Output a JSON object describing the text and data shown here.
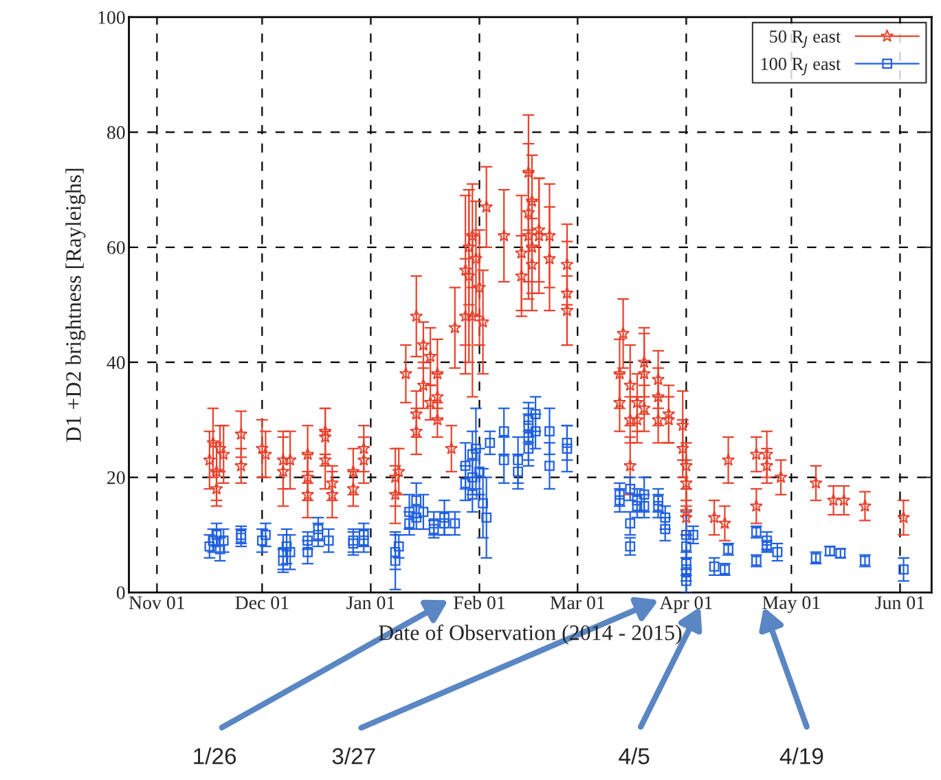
{
  "chart_data": {
    "type": "scatter",
    "xlabel": "Date of Observation (2014 - 2015)",
    "ylabel": "D1 +D2 brightness [Rayleighs]",
    "xlim": [
      "2014-10-24",
      "2015-06-10"
    ],
    "xticks": [
      {
        "value": "2014-11-01",
        "label": "Nov 01"
      },
      {
        "value": "2014-12-01",
        "label": "Dec 01"
      },
      {
        "value": "2015-01-01",
        "label": "Jan 01"
      },
      {
        "value": "2015-02-01",
        "label": "Feb 01"
      },
      {
        "value": "2015-03-01",
        "label": "Mar 01"
      },
      {
        "value": "2015-04-01",
        "label": "Apr 01"
      },
      {
        "value": "2015-05-01",
        "label": "May 01"
      },
      {
        "value": "2015-06-01",
        "label": "Jun 01"
      }
    ],
    "ylim": [
      0,
      100
    ],
    "yticks": [
      0,
      20,
      40,
      60,
      80,
      100
    ],
    "grid": true,
    "legend": "top right",
    "series": [
      {
        "name": "50 R$_{J}$ east",
        "color": "#e8412c",
        "marker": "star",
        "x": [
          "2014-11-16",
          "2014-11-17",
          "2014-11-18",
          "2014-11-18",
          "2014-11-19",
          "2014-11-20",
          "2014-11-25",
          "2014-11-25",
          "2014-12-01",
          "2014-12-02",
          "2014-12-07",
          "2014-12-07",
          "2014-12-09",
          "2014-12-14",
          "2014-12-14",
          "2014-12-14",
          "2014-12-19",
          "2014-12-19",
          "2014-12-19",
          "2014-12-21",
          "2014-12-21",
          "2014-12-27",
          "2014-12-27",
          "2014-12-30",
          "2014-12-30",
          "2015-01-08",
          "2015-01-08",
          "2015-01-09",
          "2015-01-11",
          "2015-01-14",
          "2015-01-14",
          "2015-01-14",
          "2015-01-16",
          "2015-01-16",
          "2015-01-18",
          "2015-01-18",
          "2015-01-20",
          "2015-01-20",
          "2015-01-20",
          "2015-01-24",
          "2015-01-25",
          "2015-01-28",
          "2015-01-28",
          "2015-01-29",
          "2015-01-29",
          "2015-01-30",
          "2015-01-30",
          "2015-01-31",
          "2015-02-01",
          "2015-02-02",
          "2015-02-03",
          "2015-02-08",
          "2015-02-13",
          "2015-02-13",
          "2015-02-15",
          "2015-02-15",
          "2015-02-15",
          "2015-02-16",
          "2015-02-16",
          "2015-02-16",
          "2015-02-18",
          "2015-02-18",
          "2015-02-21",
          "2015-02-21",
          "2015-02-26",
          "2015-02-26",
          "2015-02-26",
          "2015-03-13",
          "2015-03-13",
          "2015-03-14",
          "2015-03-16",
          "2015-03-16",
          "2015-03-16",
          "2015-03-18",
          "2015-03-18",
          "2015-03-20",
          "2015-03-20",
          "2015-03-20",
          "2015-03-24",
          "2015-03-24",
          "2015-03-24",
          "2015-03-27",
          "2015-03-27",
          "2015-03-31",
          "2015-03-31",
          "2015-04-01",
          "2015-04-01",
          "2015-04-01",
          "2015-04-01",
          "2015-04-09",
          "2015-04-12",
          "2015-04-13",
          "2015-04-21",
          "2015-04-21",
          "2015-04-24",
          "2015-04-24",
          "2015-04-28",
          "2015-05-08",
          "2015-05-13",
          "2015-05-16",
          "2015-05-22",
          "2015-06-02"
        ],
        "values": [
          23,
          26,
          21,
          18,
          25,
          24,
          22,
          27.5,
          25,
          24,
          23,
          21,
          23,
          20,
          17,
          24,
          27,
          23,
          28,
          19,
          17,
          21,
          18,
          23,
          25,
          17,
          20,
          21,
          38,
          48,
          31,
          28,
          43,
          36,
          41,
          33,
          38,
          34,
          30,
          25,
          46,
          56,
          48,
          55,
          60,
          62,
          48,
          58,
          53,
          47,
          67,
          62,
          59,
          55,
          73,
          66,
          62,
          68,
          60,
          57,
          63,
          62,
          58,
          62,
          57,
          52,
          49,
          38,
          33,
          45,
          22,
          36,
          30,
          33,
          30,
          40,
          38,
          32,
          37,
          30,
          34,
          31,
          30,
          29,
          25,
          22,
          19,
          14,
          13,
          13,
          12,
          23,
          24,
          15,
          24,
          22,
          20,
          19,
          16,
          16,
          15,
          13
        ],
        "errors": [
          5,
          6,
          5,
          3,
          4,
          5,
          3,
          4,
          5,
          4,
          5,
          6,
          5,
          4,
          4,
          5,
          5,
          5,
          4,
          3,
          4,
          4,
          3,
          4,
          4,
          5,
          5,
          4,
          5,
          7,
          4,
          4,
          4,
          4,
          5,
          3,
          6,
          4,
          3,
          4,
          7,
          13,
          10,
          15,
          10,
          9,
          14,
          10,
          10,
          9,
          7,
          8,
          10,
          7,
          10,
          12,
          11,
          8,
          8,
          8,
          9,
          10,
          9,
          9,
          7,
          9,
          6,
          6,
          5,
          6,
          5,
          7,
          4,
          5,
          4,
          6,
          7,
          4,
          5,
          4,
          5,
          5,
          4,
          6,
          5,
          4,
          4,
          4,
          3,
          3,
          3,
          4,
          3,
          3,
          4,
          3,
          3,
          3,
          2.5,
          2.5,
          2.5,
          3
        ]
      },
      {
        "name": "100 R$_{J}$ east",
        "color": "#1f5fe0",
        "marker": "square",
        "x": [
          "2014-11-16",
          "2014-11-17",
          "2014-11-18",
          "2014-11-19",
          "2014-11-20",
          "2014-11-25",
          "2014-11-25",
          "2014-12-01",
          "2014-12-02",
          "2014-12-07",
          "2014-12-07",
          "2014-12-08",
          "2014-12-09",
          "2014-12-14",
          "2014-12-14",
          "2014-12-17",
          "2014-12-17",
          "2014-12-20",
          "2014-12-27",
          "2014-12-27",
          "2014-12-30",
          "2014-12-30",
          "2015-01-08",
          "2015-01-08",
          "2015-01-09",
          "2015-01-12",
          "2015-01-12",
          "2015-01-14",
          "2015-01-14",
          "2015-01-16",
          "2015-01-19",
          "2015-01-19",
          "2015-01-22",
          "2015-01-22",
          "2015-01-25",
          "2015-01-28",
          "2015-01-28",
          "2015-01-30",
          "2015-01-30",
          "2015-01-30",
          "2015-01-31",
          "2015-02-01",
          "2015-02-02",
          "2015-02-03",
          "2015-02-04",
          "2015-02-08",
          "2015-02-08",
          "2015-02-12",
          "2015-02-12",
          "2015-02-15",
          "2015-02-15",
          "2015-02-15",
          "2015-02-15",
          "2015-02-17",
          "2015-02-17",
          "2015-02-21",
          "2015-02-21",
          "2015-02-26",
          "2015-02-26",
          "2015-03-13",
          "2015-03-13",
          "2015-03-16",
          "2015-03-16",
          "2015-03-16",
          "2015-03-18",
          "2015-03-18",
          "2015-03-20",
          "2015-03-20",
          "2015-03-24",
          "2015-03-24",
          "2015-03-26",
          "2015-03-26",
          "2015-04-01",
          "2015-04-01",
          "2015-04-01",
          "2015-04-01",
          "2015-04-01",
          "2015-04-03",
          "2015-04-09",
          "2015-04-12",
          "2015-04-13",
          "2015-04-21",
          "2015-04-21",
          "2015-04-24",
          "2015-04-24",
          "2015-04-27",
          "2015-05-08",
          "2015-05-12",
          "2015-05-15",
          "2015-05-22",
          "2015-06-02"
        ],
        "values": [
          8,
          9,
          10,
          7.5,
          9,
          10,
          9.5,
          9,
          10,
          7,
          5.5,
          8,
          7,
          7,
          9,
          11,
          10,
          9,
          9,
          8.5,
          10,
          9,
          5.5,
          7,
          8,
          12,
          14,
          16,
          13,
          14,
          12,
          11,
          13,
          12,
          12,
          22,
          19,
          24,
          20,
          17,
          25,
          21,
          15.5,
          13,
          26,
          28,
          23,
          23,
          21,
          27,
          29,
          25,
          30,
          28,
          31,
          28,
          22,
          25,
          26,
          17,
          16,
          18,
          12,
          8,
          16,
          15,
          17,
          15,
          16,
          15,
          13,
          11,
          10,
          4,
          2,
          5,
          8,
          10,
          4.5,
          4,
          7.5,
          10.5,
          5.5,
          9,
          8,
          7,
          6,
          7.2,
          6.8,
          5.5,
          4
        ],
        "errors": [
          2,
          2,
          2,
          2,
          2,
          1.5,
          1.5,
          2,
          2,
          3,
          2,
          3,
          3,
          2,
          1.5,
          2,
          2,
          2,
          2,
          2,
          2,
          2,
          5,
          3,
          2,
          2,
          3,
          3,
          2,
          3,
          2,
          1.5,
          3,
          2,
          2,
          4,
          3,
          4,
          3,
          3,
          7,
          4,
          6,
          7,
          2,
          4,
          4,
          4,
          3,
          4,
          3,
          3,
          3,
          3,
          3,
          4,
          4,
          4,
          3,
          2,
          2,
          2,
          2,
          1.5,
          2,
          2,
          3,
          2,
          2,
          2,
          2,
          2,
          4,
          2,
          2,
          2,
          2,
          1.5,
          1.5,
          1,
          1,
          1,
          1,
          1.5,
          1,
          1.5,
          1,
          0.8,
          0.8,
          1,
          2
        ]
      }
    ],
    "annotations": [
      "1/26",
      "3/27",
      "4/5",
      "4/19"
    ]
  }
}
